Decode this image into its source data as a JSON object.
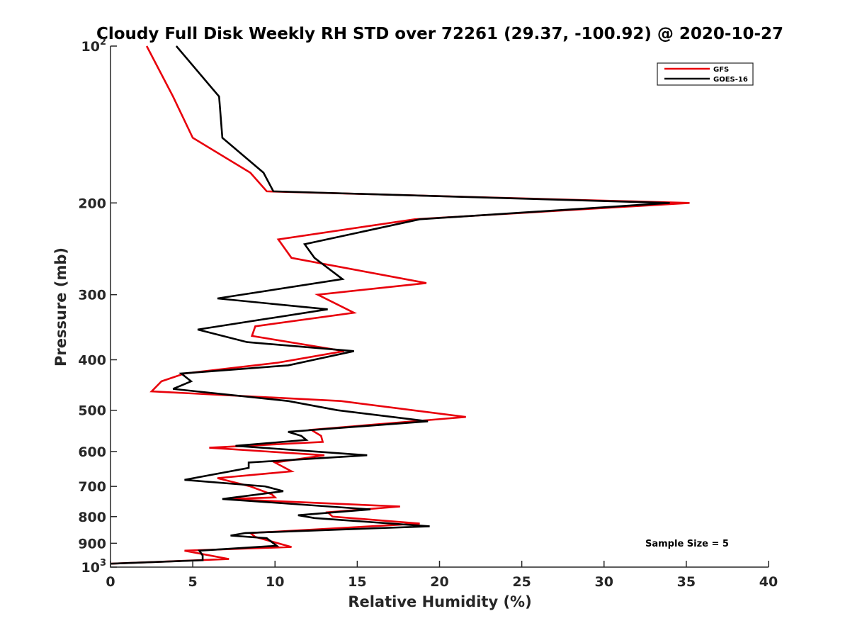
{
  "chart_data": {
    "type": "line",
    "title": "Cloudy Full Disk Weekly RH STD over 72261 (29.37, -100.92) @ 2020-10-27",
    "xlabel": "Relative Humidity (%)",
    "ylabel": "Pressure (mb)",
    "xlim": [
      0,
      40
    ],
    "ylim": [
      1000,
      100
    ],
    "y_scale": "log",
    "x_ticks": [
      "0",
      "5",
      "10",
      "15",
      "20",
      "25",
      "30",
      "35",
      "40"
    ],
    "y_ticks": [
      {
        "value": 100,
        "base": "10",
        "exp": "2"
      },
      {
        "value": 200,
        "label": "200"
      },
      {
        "value": 300,
        "label": "300"
      },
      {
        "value": 400,
        "label": "400"
      },
      {
        "value": 500,
        "label": "500"
      },
      {
        "value": 600,
        "label": "600"
      },
      {
        "value": 700,
        "label": "700"
      },
      {
        "value": 800,
        "label": "800"
      },
      {
        "value": 900,
        "label": "900"
      },
      {
        "value": 1000,
        "base": "10",
        "exp": "3"
      }
    ],
    "legend": {
      "position": "top-right",
      "entries": [
        "GFS",
        "GOES-16"
      ]
    },
    "annotation": "Sample Size = 5",
    "grid": false,
    "series": [
      {
        "name": "GFS",
        "color": "#e8000b",
        "points": [
          [
            2.2,
            100
          ],
          [
            3.8,
            125
          ],
          [
            5.0,
            150
          ],
          [
            8.5,
            175
          ],
          [
            9.5,
            190
          ],
          [
            35.2,
            200
          ],
          [
            18.5,
            215
          ],
          [
            10.2,
            235
          ],
          [
            11.0,
            255
          ],
          [
            19.2,
            285
          ],
          [
            12.6,
            300
          ],
          [
            14.8,
            325
          ],
          [
            8.8,
            345
          ],
          [
            8.6,
            360
          ],
          [
            14.2,
            385
          ],
          [
            10.2,
            405
          ],
          [
            4.5,
            425
          ],
          [
            3.1,
            440
          ],
          [
            2.5,
            460
          ],
          [
            14.0,
            480
          ],
          [
            21.6,
            515
          ],
          [
            12.2,
            545
          ],
          [
            12.8,
            560
          ],
          [
            12.9,
            575
          ],
          [
            6.0,
            590
          ],
          [
            13.0,
            610
          ],
          [
            10.0,
            630
          ],
          [
            11.0,
            655
          ],
          [
            6.5,
            675
          ],
          [
            8.5,
            700
          ],
          [
            9.8,
            725
          ],
          [
            10.0,
            735
          ],
          [
            7.0,
            740
          ],
          [
            17.6,
            765
          ],
          [
            13.2,
            785
          ],
          [
            13.5,
            800
          ],
          [
            18.8,
            825
          ],
          [
            8.5,
            860
          ],
          [
            8.8,
            875
          ],
          [
            11.0,
            915
          ],
          [
            4.5,
            930
          ],
          [
            7.2,
            965
          ],
          [
            0.0,
            985
          ]
        ]
      },
      {
        "name": "GOES-16",
        "color": "#000000",
        "points": [
          [
            4.0,
            100
          ],
          [
            6.6,
            125
          ],
          [
            6.8,
            150
          ],
          [
            9.3,
            175
          ],
          [
            9.9,
            190
          ],
          [
            34.0,
            200
          ],
          [
            18.8,
            215
          ],
          [
            11.8,
            240
          ],
          [
            12.4,
            255
          ],
          [
            14.1,
            280
          ],
          [
            6.5,
            305
          ],
          [
            13.2,
            320
          ],
          [
            5.3,
            350
          ],
          [
            8.3,
            370
          ],
          [
            14.8,
            385
          ],
          [
            10.8,
            410
          ],
          [
            4.3,
            425
          ],
          [
            4.9,
            440
          ],
          [
            3.8,
            455
          ],
          [
            10.8,
            480
          ],
          [
            13.8,
            500
          ],
          [
            19.3,
            525
          ],
          [
            10.8,
            550
          ],
          [
            11.6,
            560
          ],
          [
            11.9,
            570
          ],
          [
            7.6,
            585
          ],
          [
            15.6,
            610
          ],
          [
            8.4,
            630
          ],
          [
            8.4,
            645
          ],
          [
            4.5,
            680
          ],
          [
            9.4,
            700
          ],
          [
            10.5,
            715
          ],
          [
            6.8,
            740
          ],
          [
            15.8,
            775
          ],
          [
            11.4,
            795
          ],
          [
            12.4,
            805
          ],
          [
            19.4,
            835
          ],
          [
            8.2,
            860
          ],
          [
            7.3,
            870
          ],
          [
            9.5,
            880
          ],
          [
            10.1,
            910
          ],
          [
            5.4,
            930
          ],
          [
            5.6,
            950
          ],
          [
            5.6,
            970
          ],
          [
            0.0,
            985
          ]
        ]
      }
    ]
  }
}
